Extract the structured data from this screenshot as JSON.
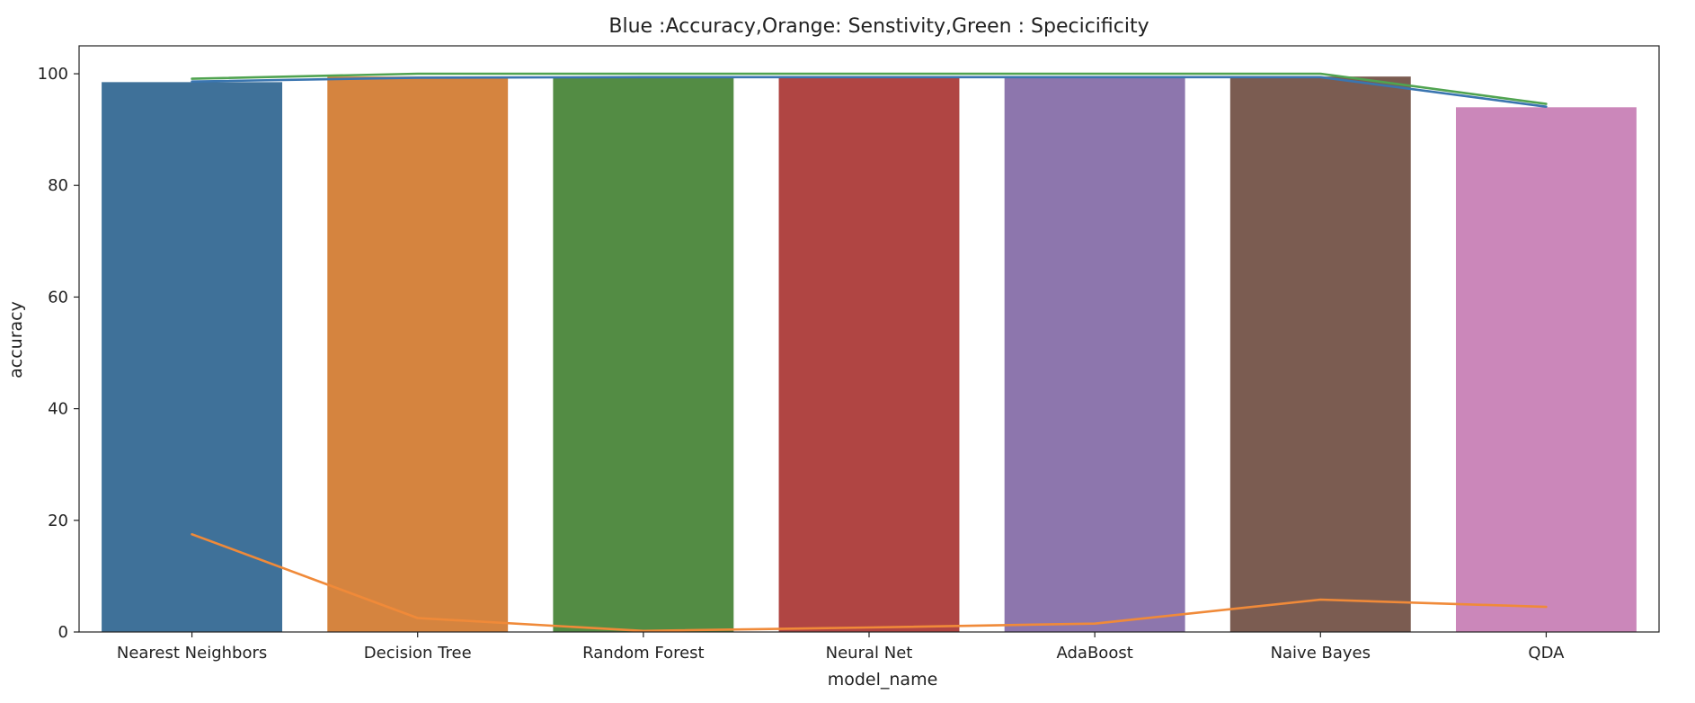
{
  "chart_data": {
    "type": "bar",
    "title": "Blue :Accuracy,Orange: Senstivity,Green : Specicificity",
    "xlabel": "model_name",
    "ylabel": "accuracy",
    "ylim": [
      0,
      105
    ],
    "yticks": [
      0,
      20,
      40,
      60,
      80,
      100
    ],
    "ytick_labels": [
      "0",
      "20",
      "40",
      "60",
      "80",
      "100"
    ],
    "grid": false,
    "categories": [
      "Nearest Neighbors",
      "Decision Tree",
      "Random Forest",
      "Neural Net",
      "AdaBoost",
      "Naive Bayes",
      "QDA"
    ],
    "bar_values": [
      98.5,
      99.5,
      99.5,
      99.5,
      99.5,
      99.5,
      94.0
    ],
    "bar_colors": [
      "#3f7199",
      "#d5843f",
      "#538c44",
      "#b04543",
      "#8d76ad",
      "#7b5c51",
      "#cb87ba"
    ],
    "series": [
      {
        "values": [
          98.6,
          99.3,
          99.4,
          99.4,
          99.4,
          99.4,
          94.1
        ],
        "color": "#3a75b0"
      },
      {
        "values": [
          17.5,
          2.5,
          0.2,
          0.8,
          1.5,
          5.8,
          4.5
        ],
        "color": "#f08a39"
      },
      {
        "values": [
          99.1,
          100.0,
          100.0,
          100.0,
          100.0,
          100.0,
          94.6
        ],
        "color": "#50a350"
      }
    ]
  }
}
